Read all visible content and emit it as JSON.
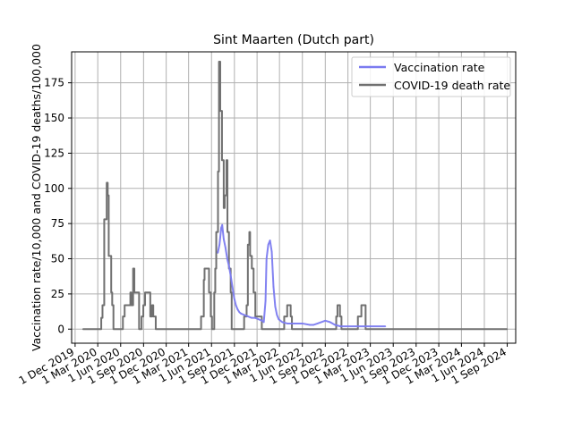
{
  "chart_data": {
    "type": "line",
    "title": "Sint Maarten (Dutch part)",
    "xlabel": "",
    "ylabel": "Vaccination rate/10,000 and COVID-19 deaths/100,000",
    "ylim": [
      -10,
      197
    ],
    "xlim": [
      "2019-11-17",
      "2024-10-05"
    ],
    "grid": true,
    "legend_position": "top-right",
    "x_ticks": [
      {
        "date": "2019-12-01",
        "label": "1 Dec 2019"
      },
      {
        "date": "2020-03-01",
        "label": "1 Mar 2020"
      },
      {
        "date": "2020-06-01",
        "label": "1 Jun 2020"
      },
      {
        "date": "2020-09-01",
        "label": "1 Sep 2020"
      },
      {
        "date": "2020-12-01",
        "label": "1 Dec 2020"
      },
      {
        "date": "2021-03-01",
        "label": "1 Mar 2021"
      },
      {
        "date": "2021-06-01",
        "label": "1 Jun 2021"
      },
      {
        "date": "2021-09-01",
        "label": "1 Sep 2021"
      },
      {
        "date": "2021-12-01",
        "label": "1 Dec 2021"
      },
      {
        "date": "2022-03-01",
        "label": "1 Mar 2022"
      },
      {
        "date": "2022-06-01",
        "label": "1 Jun 2022"
      },
      {
        "date": "2022-09-01",
        "label": "1 Sep 2022"
      },
      {
        "date": "2022-12-01",
        "label": "1 Dec 2022"
      },
      {
        "date": "2023-03-01",
        "label": "1 Mar 2023"
      },
      {
        "date": "2023-06-01",
        "label": "1 Jun 2023"
      },
      {
        "date": "2023-09-01",
        "label": "1 Sep 2023"
      },
      {
        "date": "2023-12-01",
        "label": "1 Dec 2023"
      },
      {
        "date": "2024-03-01",
        "label": "1 Mar 2024"
      },
      {
        "date": "2024-06-01",
        "label": "1 Jun 2024"
      },
      {
        "date": "2024-09-01",
        "label": "1 Sep 2024"
      }
    ],
    "y_ticks": [
      0,
      25,
      50,
      75,
      100,
      125,
      150,
      175
    ],
    "series": [
      {
        "name": "Vaccination rate",
        "color": "#7b7bf0",
        "step": false,
        "points": [
          [
            "2021-06-26",
            54
          ],
          [
            "2021-07-03",
            60
          ],
          [
            "2021-07-10",
            72
          ],
          [
            "2021-07-14",
            74
          ],
          [
            "2021-07-20",
            64
          ],
          [
            "2021-07-27",
            58
          ],
          [
            "2021-08-03",
            50
          ],
          [
            "2021-08-10",
            45
          ],
          [
            "2021-08-17",
            38
          ],
          [
            "2021-08-24",
            30
          ],
          [
            "2021-08-31",
            22
          ],
          [
            "2021-09-07",
            17
          ],
          [
            "2021-09-14",
            14
          ],
          [
            "2021-09-21",
            12
          ],
          [
            "2021-09-28",
            11
          ],
          [
            "2021-10-12",
            10
          ],
          [
            "2021-10-26",
            9
          ],
          [
            "2021-11-09",
            8
          ],
          [
            "2021-11-23",
            8
          ],
          [
            "2021-12-07",
            7
          ],
          [
            "2021-12-21",
            6
          ],
          [
            "2021-12-28",
            5
          ],
          [
            "2022-01-04",
            20
          ],
          [
            "2022-01-08",
            50
          ],
          [
            "2022-01-15",
            60
          ],
          [
            "2022-01-22",
            63
          ],
          [
            "2022-01-29",
            55
          ],
          [
            "2022-02-05",
            30
          ],
          [
            "2022-02-12",
            16
          ],
          [
            "2022-02-19",
            10
          ],
          [
            "2022-02-26",
            7
          ],
          [
            "2022-03-12",
            5
          ],
          [
            "2022-04-01",
            4
          ],
          [
            "2022-05-01",
            4
          ],
          [
            "2022-06-01",
            4
          ],
          [
            "2022-07-01",
            3
          ],
          [
            "2022-07-15",
            3
          ],
          [
            "2022-08-01",
            4
          ],
          [
            "2022-09-01",
            6
          ],
          [
            "2022-09-20",
            5
          ],
          [
            "2022-10-10",
            3
          ],
          [
            "2022-11-01",
            2
          ],
          [
            "2023-01-01",
            2
          ],
          [
            "2023-03-01",
            2
          ],
          [
            "2023-05-01",
            2
          ]
        ]
      },
      {
        "name": "COVID-19 death rate",
        "color": "#707070",
        "step": true,
        "points": [
          [
            "2020-01-01",
            0
          ],
          [
            "2020-03-15",
            8
          ],
          [
            "2020-03-20",
            17
          ],
          [
            "2020-03-27",
            78
          ],
          [
            "2020-04-03",
            78
          ],
          [
            "2020-04-06",
            104
          ],
          [
            "2020-04-10",
            95
          ],
          [
            "2020-04-14",
            52
          ],
          [
            "2020-04-24",
            26
          ],
          [
            "2020-04-28",
            17
          ],
          [
            "2020-05-03",
            0
          ],
          [
            "2020-06-03",
            0
          ],
          [
            "2020-06-10",
            9
          ],
          [
            "2020-06-17",
            17
          ],
          [
            "2020-07-10",
            26
          ],
          [
            "2020-07-14",
            17
          ],
          [
            "2020-07-21",
            43
          ],
          [
            "2020-07-26",
            26
          ],
          [
            "2020-08-14",
            0
          ],
          [
            "2020-08-24",
            9
          ],
          [
            "2020-08-31",
            17
          ],
          [
            "2020-09-07",
            26
          ],
          [
            "2020-09-28",
            9
          ],
          [
            "2020-10-05",
            17
          ],
          [
            "2020-10-10",
            9
          ],
          [
            "2020-10-20",
            0
          ],
          [
            "2021-04-20",
            9
          ],
          [
            "2021-05-01",
            35
          ],
          [
            "2021-05-04",
            43
          ],
          [
            "2021-05-22",
            26
          ],
          [
            "2021-05-29",
            9
          ],
          [
            "2021-06-03",
            0
          ],
          [
            "2021-06-12",
            26
          ],
          [
            "2021-06-16",
            43
          ],
          [
            "2021-06-20",
            69
          ],
          [
            "2021-06-27",
            112
          ],
          [
            "2021-07-01",
            190
          ],
          [
            "2021-07-06",
            155
          ],
          [
            "2021-07-13",
            120
          ],
          [
            "2021-07-20",
            86
          ],
          [
            "2021-07-24",
            95
          ],
          [
            "2021-07-31",
            120
          ],
          [
            "2021-08-04",
            69
          ],
          [
            "2021-08-10",
            43
          ],
          [
            "2021-08-17",
            26
          ],
          [
            "2021-08-21",
            0
          ],
          [
            "2021-10-10",
            9
          ],
          [
            "2021-10-20",
            17
          ],
          [
            "2021-10-25",
            60
          ],
          [
            "2021-10-31",
            69
          ],
          [
            "2021-11-03",
            52
          ],
          [
            "2021-11-10",
            43
          ],
          [
            "2021-11-17",
            26
          ],
          [
            "2021-11-24",
            9
          ],
          [
            "2021-12-20",
            0
          ],
          [
            "2022-03-20",
            9
          ],
          [
            "2022-04-01",
            17
          ],
          [
            "2022-04-15",
            9
          ],
          [
            "2022-04-20",
            0
          ],
          [
            "2022-10-15",
            9
          ],
          [
            "2022-10-20",
            17
          ],
          [
            "2022-10-30",
            9
          ],
          [
            "2022-11-05",
            0
          ],
          [
            "2023-01-10",
            9
          ],
          [
            "2023-01-24",
            17
          ],
          [
            "2023-02-10",
            0
          ],
          [
            "2023-09-01",
            0
          ],
          [
            "2024-09-01",
            0
          ]
        ]
      }
    ]
  }
}
